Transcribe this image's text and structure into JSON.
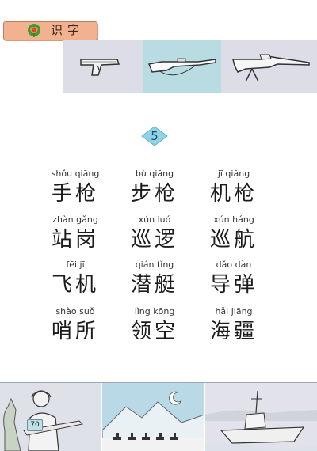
{
  "header": {
    "title": "识字"
  },
  "lesson": {
    "number": "5"
  },
  "words": [
    {
      "pinyin": "shǒu qiāng",
      "hanzi": "手枪"
    },
    {
      "pinyin": "bù qiāng",
      "hanzi": "步枪"
    },
    {
      "pinyin": "jī qiāng",
      "hanzi": "机枪"
    },
    {
      "pinyin": "zhàn gǎng",
      "hanzi": "站岗"
    },
    {
      "pinyin": "xún luó",
      "hanzi": "巡逻"
    },
    {
      "pinyin": "xún háng",
      "hanzi": "巡航"
    },
    {
      "pinyin": "fēi jī",
      "hanzi": "飞机"
    },
    {
      "pinyin": "qián tǐng",
      "hanzi": "潜艇"
    },
    {
      "pinyin": "dǎo dàn",
      "hanzi": "导弹"
    },
    {
      "pinyin": "shào suǒ",
      "hanzi": "哨所"
    },
    {
      "pinyin": "lǐng kōng",
      "hanzi": "领空"
    },
    {
      "pinyin": "hǎi jiāng",
      "hanzi": "海疆"
    }
  ],
  "footer": {
    "page_number": "70"
  },
  "images": {
    "top": [
      "pistol-illustration",
      "rifle-illustration",
      "machine-gun-illustration"
    ],
    "bottom": [
      "soldier-illustration",
      "mounted-patrol-illustration",
      "warship-illustration"
    ]
  },
  "colors": {
    "header_tab": "#f2b28f",
    "diamond": "#8fd3e6",
    "accent_panel": "#b9dce3"
  }
}
